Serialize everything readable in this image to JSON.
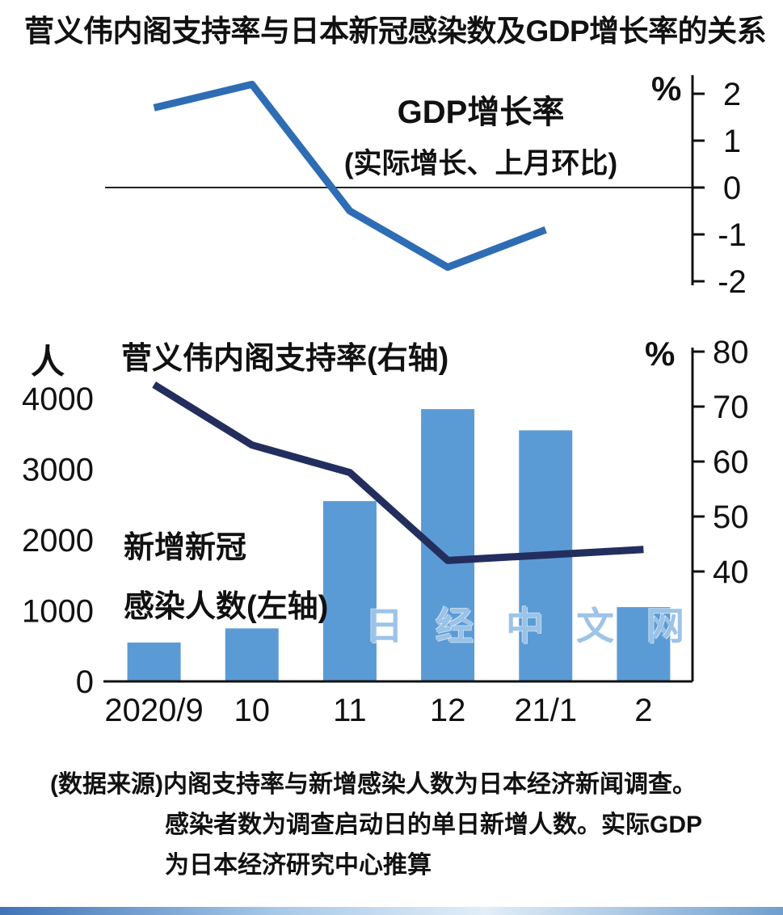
{
  "title": "菅义伟内阁支持率与日本新冠感染数及GDP增长率的关系",
  "watermark": "日经中文网",
  "footer": {
    "line1": "(数据来源)内阁支持率与新增感染人数为日本经济新闻调查。",
    "line2": "感染者数为调查启动日的单日新增人数。实际GDP",
    "line3": "为日本经济研究中心推算"
  },
  "chart_data": [
    {
      "type": "line",
      "title": "GDP增长率",
      "subtitle": "(实际增长、上月环比)",
      "unit": "%",
      "categories": [
        "2020/9",
        "10",
        "11",
        "12",
        "21/1"
      ],
      "values": [
        1.7,
        2.2,
        -0.5,
        -1.7,
        -0.9
      ],
      "ylim": [
        -2,
        2
      ],
      "yticks": [
        2,
        1,
        0,
        -1,
        -2
      ],
      "line_color": "#2e6db4",
      "grid": false,
      "legend": "none"
    },
    {
      "type": "bar+line",
      "categories": [
        "2020/9",
        "10",
        "11",
        "12",
        "21/1",
        "2"
      ],
      "bar_series": {
        "name": "新增新冠感染人数(左轴)",
        "label_line1": "新增新冠",
        "label_line2": "感染人数(左轴)",
        "unit": "人",
        "values": [
          550,
          750,
          2550,
          3850,
          3550,
          1050
        ],
        "ylim": [
          0,
          4000
        ],
        "yticks": [
          4000,
          3000,
          2000,
          1000,
          0
        ],
        "color": "#5b9bd5"
      },
      "line_series": {
        "name": "菅义伟内阁支持率(右轴)",
        "unit": "%",
        "values": [
          74,
          63,
          58,
          42,
          43,
          44
        ],
        "ylim": [
          40,
          80
        ],
        "yticks": [
          80,
          70,
          60,
          50,
          40
        ],
        "color": "#232e5f"
      },
      "grid": false,
      "legend": "none"
    }
  ]
}
